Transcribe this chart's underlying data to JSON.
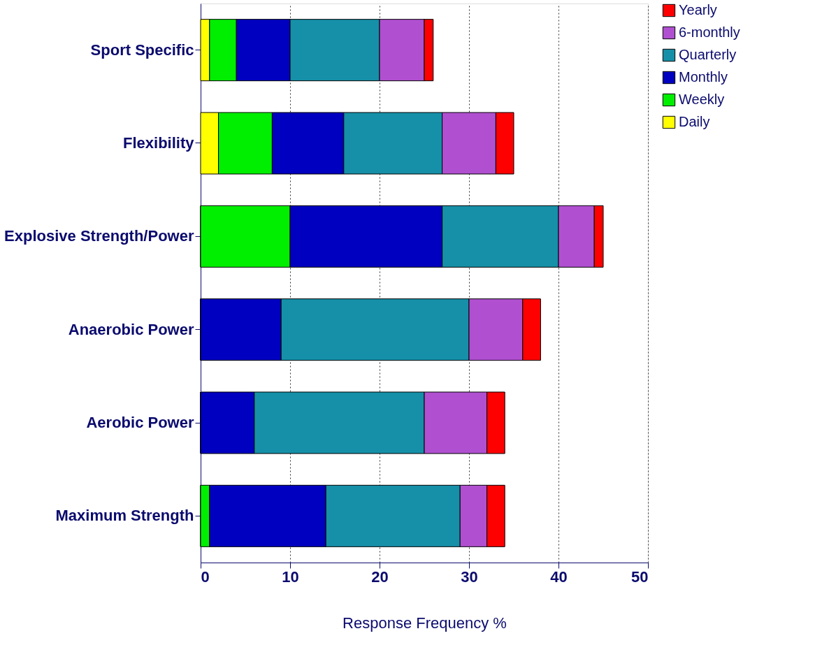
{
  "chart_data": {
    "type": "bar",
    "orientation": "horizontal",
    "stacked": true,
    "categories": [
      "Sport Specific",
      "Flexibility",
      "Explosive Strength/Power",
      "Anaerobic Power",
      "Aerobic Power",
      "Maximum Strength"
    ],
    "series": [
      {
        "name": "Daily",
        "color": "#ffff00",
        "values": [
          1,
          2,
          0,
          0,
          0,
          0
        ]
      },
      {
        "name": "Weekly",
        "color": "#00ee00",
        "values": [
          3,
          6,
          10,
          0,
          0,
          1
        ]
      },
      {
        "name": "Monthly",
        "color": "#0000c0",
        "values": [
          6,
          8,
          17,
          9,
          6,
          13
        ]
      },
      {
        "name": "Quarterly",
        "color": "#1690a8",
        "values": [
          10,
          11,
          13,
          21,
          19,
          15
        ]
      },
      {
        "name": "6-monthly",
        "color": "#b050d0",
        "values": [
          5,
          6,
          4,
          6,
          7,
          3
        ]
      },
      {
        "name": "Yearly",
        "color": "#ff0000",
        "values": [
          1,
          2,
          1,
          2,
          2,
          2
        ]
      }
    ],
    "xlabel": "Response Frequency %",
    "xlim": [
      0,
      50
    ],
    "xticks": [
      0,
      10,
      20,
      30,
      40,
      50
    ],
    "grid": "x",
    "legend": "top right"
  }
}
